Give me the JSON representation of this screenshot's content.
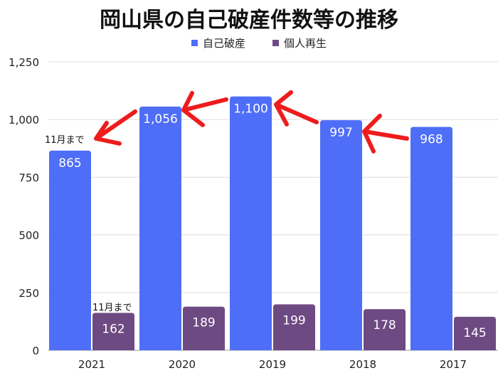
{
  "chart_data": {
    "type": "bar",
    "title": "岡山県の自己破産件数等の推移",
    "categories": [
      "2021",
      "2020",
      "2019",
      "2018",
      "2017"
    ],
    "series": [
      {
        "name": "自己破産",
        "values": [
          865,
          1056,
          1100,
          997,
          968
        ],
        "labels": [
          "865",
          "1,056",
          "1,100",
          "997",
          "968"
        ],
        "color": "#4f6ef7"
      },
      {
        "name": "個人再生",
        "values": [
          162,
          189,
          199,
          178,
          145
        ],
        "labels": [
          "162",
          "189",
          "199",
          "178",
          "145"
        ],
        "color": "#6e4a83"
      }
    ],
    "ylim": [
      0,
      1250
    ],
    "yticks": [
      "0",
      "250",
      "500",
      "750",
      "1,000",
      "1,250"
    ],
    "grid": true,
    "legend_position": "top",
    "annotations": [
      "11月まで",
      "11月まで"
    ],
    "arrow_color": "#ee1c1c"
  }
}
